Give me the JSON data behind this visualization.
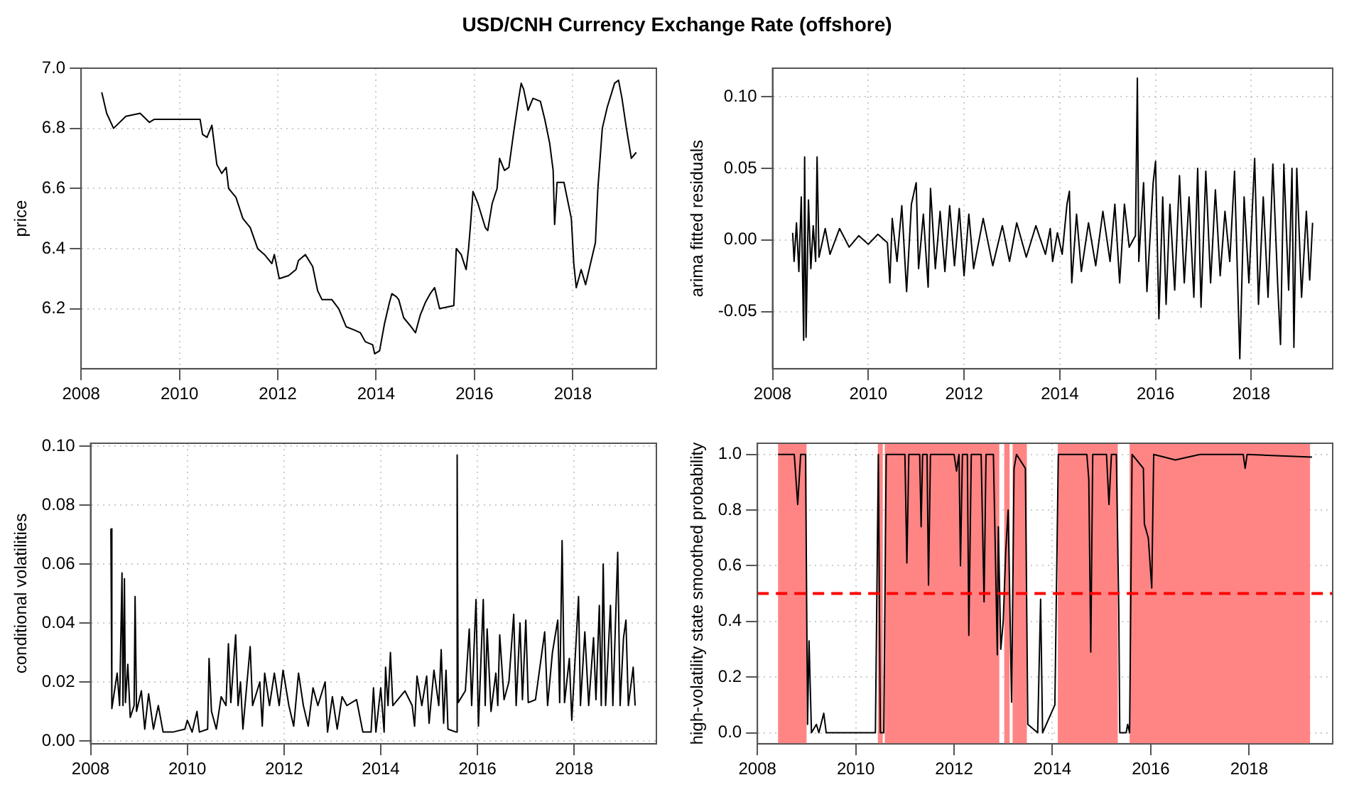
{
  "chart_data": [
    {
      "type": "line",
      "title": "USD/CNH Currency Exchange Rate (offshore)",
      "ylabel": "price",
      "color": "#000000",
      "xlim": [
        2008,
        2019.7
      ],
      "xticks": [
        2008,
        2010,
        2012,
        2014,
        2016,
        2018
      ],
      "ylim": [
        6.0,
        7.0
      ],
      "yticks": [
        {
          "value": 6.2,
          "label": "6.2"
        },
        {
          "value": 6.4,
          "label": "6.4"
        },
        {
          "value": 6.6,
          "label": "6.6"
        },
        {
          "value": 6.8,
          "label": "6.8"
        },
        {
          "value": 7,
          "label": "7.0"
        }
      ],
      "grid": true,
      "x": [
        2008.42,
        2008.52,
        2008.66,
        2008.91,
        2009.2,
        2009.39,
        2009.49,
        2010.42,
        2010.47,
        2010.56,
        2010.66,
        2010.76,
        2010.86,
        2010.95,
        2011.0,
        2011.15,
        2011.29,
        2011.44,
        2011.59,
        2011.73,
        2011.88,
        2011.93,
        2012.03,
        2012.22,
        2012.37,
        2012.42,
        2012.56,
        2012.71,
        2012.81,
        2012.9,
        2013.1,
        2013.24,
        2013.39,
        2013.54,
        2013.68,
        2013.78,
        2013.93,
        2013.97,
        2014.07,
        2014.17,
        2014.27,
        2014.32,
        2014.41,
        2014.46,
        2014.56,
        2014.71,
        2014.8,
        2014.9,
        2015.0,
        2015.1,
        2015.19,
        2015.29,
        2015.58,
        2015.63,
        2015.73,
        2015.83,
        2015.88,
        2015.92,
        2015.97,
        2016.07,
        2016.22,
        2016.27,
        2016.36,
        2016.46,
        2016.51,
        2016.61,
        2016.7,
        2016.8,
        2016.9,
        2016.95,
        2017.0,
        2017.09,
        2017.19,
        2017.34,
        2017.43,
        2017.53,
        2017.6,
        2017.63,
        2017.68,
        2017.82,
        2017.97,
        2018.02,
        2018.07,
        2018.17,
        2018.26,
        2018.36,
        2018.46,
        2018.51,
        2018.6,
        2018.7,
        2018.85,
        2018.93,
        2019.0,
        2019.09,
        2019.19,
        2019.29
      ],
      "values": [
        6.92,
        6.85,
        6.8,
        6.84,
        6.85,
        6.82,
        6.83,
        6.83,
        6.78,
        6.77,
        6.81,
        6.68,
        6.65,
        6.67,
        6.6,
        6.57,
        6.5,
        6.47,
        6.4,
        6.38,
        6.35,
        6.38,
        6.3,
        6.31,
        6.33,
        6.36,
        6.38,
        6.34,
        6.26,
        6.23,
        6.23,
        6.2,
        6.14,
        6.13,
        6.12,
        6.09,
        6.08,
        6.05,
        6.06,
        6.15,
        6.22,
        6.25,
        6.24,
        6.23,
        6.17,
        6.14,
        6.12,
        6.18,
        6.22,
        6.25,
        6.27,
        6.2,
        6.21,
        6.4,
        6.38,
        6.33,
        6.4,
        6.48,
        6.59,
        6.55,
        6.47,
        6.46,
        6.55,
        6.6,
        6.7,
        6.66,
        6.67,
        6.79,
        6.9,
        6.95,
        6.93,
        6.86,
        6.9,
        6.89,
        6.83,
        6.75,
        6.66,
        6.48,
        6.62,
        6.62,
        6.5,
        6.35,
        6.27,
        6.33,
        6.28,
        6.35,
        6.42,
        6.6,
        6.8,
        6.87,
        6.95,
        6.96,
        6.9,
        6.8,
        6.7,
        6.72
      ]
    },
    {
      "type": "line",
      "ylabel": "arima fitted residuals",
      "color": "#000000",
      "xlim": [
        2008,
        2019.7
      ],
      "xticks": [
        2008,
        2010,
        2012,
        2014,
        2016,
        2018
      ],
      "ylim": [
        -0.09,
        0.12
      ],
      "yticks": [
        {
          "value": -0.05,
          "label": "-0.05"
        },
        {
          "value": 0,
          "label": "0.00"
        },
        {
          "value": 0.05,
          "label": "0.05"
        },
        {
          "value": 0.1,
          "label": "0.10"
        }
      ],
      "grid": true,
      "x": [
        2008.42,
        2008.45,
        2008.5,
        2008.55,
        2008.6,
        2008.65,
        2008.67,
        2008.7,
        2008.75,
        2008.8,
        2008.85,
        2008.9,
        2008.93,
        2008.97,
        2009.1,
        2009.2,
        2009.4,
        2009.6,
        2009.8,
        2010.0,
        2010.2,
        2010.4,
        2010.45,
        2010.5,
        2010.6,
        2010.7,
        2010.8,
        2010.9,
        2011.0,
        2011.05,
        2011.15,
        2011.25,
        2011.3,
        2011.4,
        2011.5,
        2011.6,
        2011.7,
        2011.8,
        2011.9,
        2012.0,
        2012.1,
        2012.2,
        2012.4,
        2012.6,
        2012.8,
        2012.95,
        2013.1,
        2013.3,
        2013.5,
        2013.7,
        2013.8,
        2013.85,
        2013.95,
        2014.05,
        2014.15,
        2014.2,
        2014.25,
        2014.35,
        2014.45,
        2014.6,
        2014.75,
        2014.9,
        2015.05,
        2015.15,
        2015.25,
        2015.35,
        2015.45,
        2015.58,
        2015.62,
        2015.65,
        2015.75,
        2015.82,
        2015.95,
        2016.0,
        2016.07,
        2016.15,
        2016.22,
        2016.3,
        2016.4,
        2016.5,
        2016.6,
        2016.7,
        2016.8,
        2016.88,
        2016.95,
        2017.05,
        2017.15,
        2017.25,
        2017.35,
        2017.45,
        2017.55,
        2017.65,
        2017.76,
        2017.85,
        2017.95,
        2018.07,
        2018.15,
        2018.25,
        2018.35,
        2018.45,
        2018.55,
        2018.61,
        2018.68,
        2018.78,
        2018.85,
        2018.89,
        2018.95,
        2019.05,
        2019.15,
        2019.22,
        2019.28
      ],
      "values": [
        0.005,
        -0.015,
        0.012,
        -0.022,
        0.03,
        -0.07,
        0.058,
        -0.068,
        0.028,
        -0.02,
        0.01,
        -0.015,
        0.058,
        -0.012,
        0.008,
        -0.01,
        0.008,
        -0.005,
        0.003,
        -0.003,
        0.004,
        -0.002,
        -0.03,
        0.015,
        -0.015,
        0.024,
        -0.036,
        0.025,
        0.04,
        -0.02,
        0.018,
        -0.033,
        0.036,
        -0.02,
        0.02,
        -0.022,
        0.024,
        -0.018,
        0.022,
        -0.025,
        0.018,
        -0.02,
        0.015,
        -0.018,
        0.01,
        -0.015,
        0.012,
        -0.012,
        0.01,
        -0.01,
        0.008,
        -0.015,
        0.005,
        -0.01,
        0.025,
        0.034,
        -0.03,
        0.018,
        -0.022,
        0.012,
        -0.018,
        0.02,
        -0.015,
        0.025,
        -0.03,
        0.025,
        -0.005,
        0.003,
        0.113,
        -0.015,
        0.04,
        -0.036,
        0.04,
        0.055,
        -0.055,
        0.03,
        -0.045,
        0.025,
        -0.035,
        0.045,
        -0.03,
        0.03,
        -0.04,
        0.05,
        -0.047,
        0.048,
        -0.03,
        0.035,
        -0.025,
        0.02,
        -0.015,
        0.048,
        -0.083,
        0.03,
        -0.03,
        0.057,
        -0.045,
        0.03,
        -0.04,
        0.053,
        -0.03,
        -0.073,
        0.053,
        -0.035,
        0.05,
        -0.075,
        0.05,
        -0.04,
        0.02,
        -0.028,
        0.012
      ]
    },
    {
      "type": "line",
      "ylabel": "conditional volatilities",
      "color": "#000000",
      "xlim": [
        2008,
        2019.7
      ],
      "xticks": [
        2008,
        2010,
        2012,
        2014,
        2016,
        2018
      ],
      "ylim": [
        -0.001,
        0.101
      ],
      "yticks": [
        {
          "value": 0,
          "label": "0.00"
        },
        {
          "value": 0.02,
          "label": "0.02"
        },
        {
          "value": 0.04,
          "label": "0.04"
        },
        {
          "value": 0.06,
          "label": "0.06"
        },
        {
          "value": 0.08,
          "label": "0.08"
        },
        {
          "value": 0.1,
          "label": "0.10"
        }
      ],
      "grid": true,
      "x": [
        2008.42,
        2008.44,
        2008.55,
        2008.6,
        2008.65,
        2008.67,
        2008.7,
        2008.72,
        2008.77,
        2008.82,
        2008.9,
        2008.92,
        2008.95,
        2009.05,
        2009.12,
        2009.2,
        2009.3,
        2009.4,
        2009.5,
        2009.7,
        2009.95,
        2010.0,
        2010.1,
        2010.2,
        2010.25,
        2010.42,
        2010.45,
        2010.5,
        2010.6,
        2010.7,
        2010.8,
        2010.85,
        2010.9,
        2011.0,
        2011.05,
        2011.1,
        2011.15,
        2011.3,
        2011.35,
        2011.5,
        2011.55,
        2011.6,
        2011.7,
        2011.8,
        2011.9,
        2011.98,
        2012.1,
        2012.2,
        2012.3,
        2012.4,
        2012.5,
        2012.6,
        2012.7,
        2012.85,
        2012.9,
        2013.0,
        2013.1,
        2013.2,
        2013.3,
        2013.5,
        2013.63,
        2013.8,
        2013.85,
        2013.9,
        2014.0,
        2014.07,
        2014.1,
        2014.15,
        2014.2,
        2014.25,
        2014.5,
        2014.65,
        2014.7,
        2014.75,
        2014.85,
        2014.95,
        2015.0,
        2015.1,
        2015.2,
        2015.25,
        2015.3,
        2015.35,
        2015.39,
        2015.56,
        2015.58,
        2015.6,
        2015.75,
        2015.83,
        2015.88,
        2015.97,
        2016.02,
        2016.12,
        2016.16,
        2016.2,
        2016.28,
        2016.38,
        2016.42,
        2016.46,
        2016.55,
        2016.65,
        2016.75,
        2016.8,
        2016.88,
        2016.93,
        2017.0,
        2017.05,
        2017.2,
        2017.39,
        2017.45,
        2017.55,
        2017.66,
        2017.7,
        2017.75,
        2017.8,
        2017.9,
        2017.95,
        2018.09,
        2018.13,
        2018.22,
        2018.3,
        2018.4,
        2018.45,
        2018.52,
        2018.56,
        2018.6,
        2018.65,
        2018.75,
        2018.8,
        2018.9,
        2018.95,
        2019.02,
        2019.07,
        2019.12,
        2019.22,
        2019.26
      ],
      "values": [
        0.072,
        0.011,
        0.023,
        0.012,
        0.057,
        0.012,
        0.055,
        0.013,
        0.026,
        0.008,
        0.012,
        0.049,
        0.01,
        0.017,
        0.004,
        0.016,
        0.004,
        0.012,
        0.003,
        0.003,
        0.004,
        0.007,
        0.003,
        0.01,
        0.003,
        0.004,
        0.028,
        0.01,
        0.004,
        0.015,
        0.012,
        0.033,
        0.013,
        0.036,
        0.012,
        0.02,
        0.004,
        0.032,
        0.012,
        0.02,
        0.005,
        0.023,
        0.012,
        0.023,
        0.012,
        0.024,
        0.012,
        0.005,
        0.023,
        0.012,
        0.005,
        0.018,
        0.012,
        0.02,
        0.003,
        0.015,
        0.004,
        0.015,
        0.012,
        0.014,
        0.003,
        0.003,
        0.018,
        0.003,
        0.018,
        0.003,
        0.025,
        0.012,
        0.03,
        0.012,
        0.017,
        0.012,
        0.005,
        0.022,
        0.012,
        0.022,
        0.006,
        0.024,
        0.012,
        0.031,
        0.006,
        0.024,
        0.004,
        0.003,
        0.097,
        0.013,
        0.017,
        0.038,
        0.012,
        0.048,
        0.005,
        0.048,
        0.012,
        0.038,
        0.01,
        0.023,
        0.012,
        0.036,
        0.014,
        0.02,
        0.043,
        0.012,
        0.04,
        0.014,
        0.041,
        0.013,
        0.014,
        0.037,
        0.012,
        0.03,
        0.041,
        0.013,
        0.068,
        0.013,
        0.028,
        0.007,
        0.049,
        0.012,
        0.037,
        0.012,
        0.035,
        0.014,
        0.046,
        0.012,
        0.06,
        0.012,
        0.046,
        0.012,
        0.064,
        0.012,
        0.035,
        0.041,
        0.012,
        0.025,
        0.012
      ]
    },
    {
      "type": "line",
      "ylabel": "high-volatility state smoothed probability",
      "color": "#000000",
      "xlim": [
        2008,
        2019.7
      ],
      "xticks": [
        2008,
        2010,
        2012,
        2014,
        2016,
        2018
      ],
      "ylim": [
        -0.04,
        1.04
      ],
      "yticks": [
        {
          "value": 0,
          "label": "0.0"
        },
        {
          "value": 0.2,
          "label": "0.2"
        },
        {
          "value": 0.4,
          "label": "0.4"
        },
        {
          "value": 0.6,
          "label": "0.6"
        },
        {
          "value": 0.8,
          "label": "0.8"
        },
        {
          "value": 1,
          "label": "1.0"
        }
      ],
      "grid": true,
      "bands": [
        {
          "axis": "x",
          "from": 2008.42,
          "to": 2009.0,
          "color": "#ff8585"
        },
        {
          "axis": "x",
          "from": 2010.45,
          "to": 2010.55,
          "color": "#ff8585"
        },
        {
          "axis": "x",
          "from": 2010.59,
          "to": 2012.92,
          "color": "#ff8585"
        },
        {
          "axis": "x",
          "from": 2013.02,
          "to": 2013.13,
          "color": "#ff8585"
        },
        {
          "axis": "x",
          "from": 2013.19,
          "to": 2013.48,
          "color": "#ff8585"
        },
        {
          "axis": "x",
          "from": 2014.11,
          "to": 2015.33,
          "color": "#ff8585"
        },
        {
          "axis": "x",
          "from": 2015.57,
          "to": 2019.24,
          "color": "#ff8585"
        }
      ],
      "ref_lines": [
        {
          "axis": "y",
          "value": 0.5,
          "color": "#ff0000",
          "line_style": "dashed"
        }
      ],
      "x": [
        2008.42,
        2008.75,
        2008.82,
        2008.88,
        2008.98,
        2009.02,
        2009.05,
        2009.1,
        2009.2,
        2009.25,
        2009.35,
        2009.4,
        2010.0,
        2010.4,
        2010.46,
        2010.5,
        2010.57,
        2010.62,
        2011.0,
        2011.04,
        2011.08,
        2011.3,
        2011.33,
        2011.36,
        2011.45,
        2011.48,
        2011.52,
        2012.0,
        2012.05,
        2012.1,
        2012.13,
        2012.17,
        2012.27,
        2012.3,
        2012.35,
        2012.55,
        2012.61,
        2012.65,
        2012.8,
        2012.88,
        2012.9,
        2012.95,
        2013.0,
        2013.05,
        2013.1,
        2013.17,
        2013.22,
        2013.27,
        2013.45,
        2013.5,
        2013.7,
        2013.76,
        2013.8,
        2014.05,
        2014.12,
        2014.7,
        2014.74,
        2014.78,
        2014.82,
        2015.1,
        2015.15,
        2015.2,
        2015.3,
        2015.35,
        2015.37,
        2015.5,
        2015.53,
        2015.57,
        2015.62,
        2015.85,
        2015.87,
        2015.95,
        2016.02,
        2016.06,
        2016.5,
        2017.0,
        2017.88,
        2017.92,
        2017.96,
        2019.28
      ],
      "values": [
        1.0,
        1.0,
        0.82,
        1.0,
        1.0,
        0.03,
        0.33,
        0.0,
        0.03,
        0.0,
        0.07,
        0.0,
        0.0,
        0.0,
        1.0,
        0.0,
        0.0,
        1.0,
        1.0,
        0.61,
        1.0,
        1.0,
        0.74,
        1.0,
        1.0,
        0.53,
        1.0,
        1.0,
        0.94,
        1.0,
        0.6,
        1.0,
        1.0,
        0.35,
        1.0,
        1.0,
        0.47,
        1.0,
        1.0,
        0.28,
        0.74,
        0.3,
        0.4,
        0.65,
        0.8,
        0.11,
        0.95,
        1.0,
        0.95,
        0.03,
        0.0,
        0.48,
        0.0,
        0.1,
        1.0,
        1.0,
        0.91,
        0.29,
        1.0,
        1.0,
        0.82,
        1.0,
        1.0,
        0.44,
        0.0,
        0.0,
        0.03,
        0.0,
        1.0,
        0.95,
        0.75,
        0.7,
        0.52,
        1.0,
        0.98,
        1.0,
        1.0,
        0.95,
        1.0,
        0.99
      ]
    }
  ]
}
